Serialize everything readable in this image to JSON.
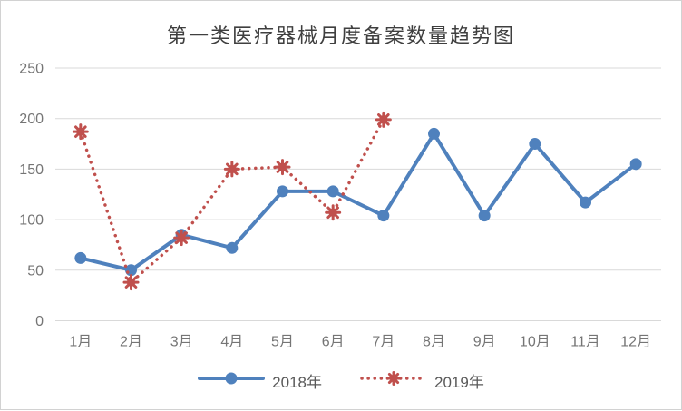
{
  "chart_data": {
    "type": "line",
    "title": "第一类医疗器械月度备案数量趋势图",
    "categories": [
      "1月",
      "2月",
      "3月",
      "4月",
      "5月",
      "6月",
      "7月",
      "8月",
      "9月",
      "10月",
      "11月",
      "12月"
    ],
    "series": [
      {
        "name": "2018年",
        "color": "#4F81BD",
        "line_style": "solid",
        "marker": "circle",
        "values": [
          62,
          50,
          85,
          72,
          128,
          128,
          104,
          185,
          104,
          175,
          117,
          155
        ]
      },
      {
        "name": "2019年",
        "color": "#C0504D",
        "line_style": "dotted",
        "marker": "burst",
        "values": [
          187,
          38,
          82,
          150,
          152,
          107,
          199
        ]
      }
    ],
    "xlabel": "",
    "ylabel": "",
    "ylim": [
      0,
      250
    ],
    "yticks": [
      "0",
      "50",
      "100",
      "150",
      "200",
      "250"
    ],
    "grid": "horizontal",
    "legend_position": "bottom",
    "colors": {
      "gridline": "#D9D9D9",
      "axis_label": "#757575",
      "title": "#3F3F3F",
      "legend_text": "#595959",
      "frame_border": "#D2D2D2"
    }
  }
}
